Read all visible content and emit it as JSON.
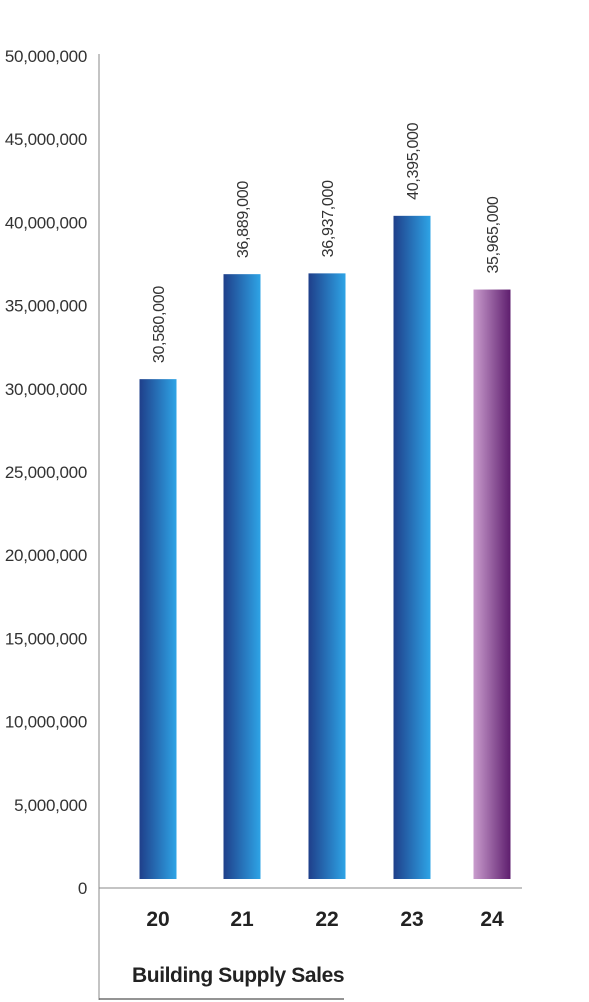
{
  "chart_data": {
    "type": "bar",
    "title": "Building Supply Sales",
    "categories": [
      "20",
      "21",
      "22",
      "23",
      "24"
    ],
    "values": [
      30580000,
      36889000,
      36937000,
      40395000,
      35965000
    ],
    "value_labels": [
      "30,580,000",
      "36,889,000",
      "36,937,000",
      "40,395,000",
      "35,965,000"
    ],
    "ylim": [
      0,
      50000000
    ],
    "yticks": [
      0,
      5000000,
      10000000,
      15000000,
      20000000,
      25000000,
      30000000,
      35000000,
      40000000,
      45000000,
      50000000
    ],
    "ytick_labels": [
      "0",
      "5,000,000",
      "10,000,000",
      "15,000,000",
      "20,000,000",
      "25,000,000",
      "30,000,000",
      "35,000,000",
      "40,000,000",
      "45,000,000",
      "50,000,000"
    ],
    "xlabel": "",
    "ylabel": "",
    "grid": false,
    "legend": "none",
    "colors": {
      "bar_dark": "#1f3f8a",
      "bar_light": "#2ea4e6",
      "highlight_dark": "#5e1e6e",
      "highlight_light": "#c99ccd",
      "axis": "#888888"
    },
    "highlight_index": 4
  }
}
